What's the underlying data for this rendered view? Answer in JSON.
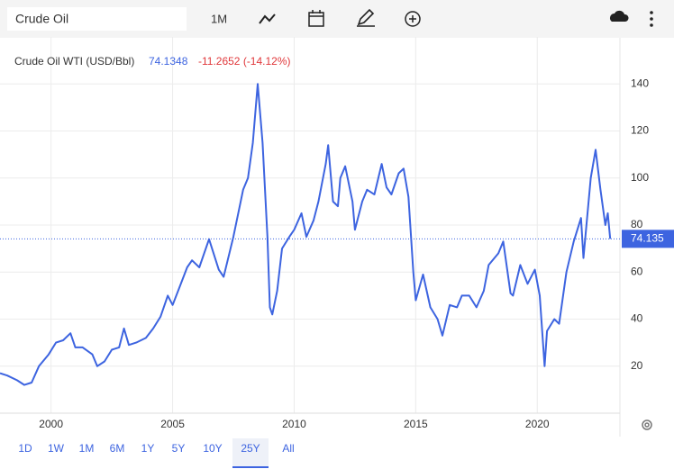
{
  "toolbar": {
    "search": "Crude Oil",
    "interval": "1M"
  },
  "chart_data": {
    "type": "line",
    "title": "Crude Oil WTI (USD/Bbl)",
    "legend_price": "74.1348",
    "legend_change": "-11.2652 (-14.12%)",
    "series": [
      {
        "name": "Crude Oil WTI",
        "color": "#3d64e0",
        "x": [
          1997.9,
          1998.2,
          1998.6,
          1998.9,
          1999.2,
          1999.5,
          1999.9,
          2000.2,
          2000.5,
          2000.8,
          2001.0,
          2001.3,
          2001.7,
          2001.9,
          2002.2,
          2002.5,
          2002.8,
          2003.0,
          2003.2,
          2003.5,
          2003.9,
          2004.2,
          2004.5,
          2004.8,
          2005.0,
          2005.3,
          2005.6,
          2005.8,
          2006.1,
          2006.5,
          2006.9,
          2007.1,
          2007.5,
          2007.8,
          2007.9,
          2008.1,
          2008.3,
          2008.5,
          2008.7,
          2008.9,
          2009.0,
          2009.1,
          2009.3,
          2009.5,
          2009.8,
          2010.0,
          2010.3,
          2010.5,
          2010.8,
          2011.0,
          2011.3,
          2011.4,
          2011.6,
          2011.8,
          2011.9,
          2012.1,
          2012.4,
          2012.5,
          2012.8,
          2013.0,
          2013.3,
          2013.6,
          2013.8,
          2014.0,
          2014.3,
          2014.5,
          2014.7,
          2014.9,
          2015.0,
          2015.3,
          2015.6,
          2015.9,
          2016.1,
          2016.4,
          2016.7,
          2016.9,
          2017.2,
          2017.5,
          2017.8,
          2018.0,
          2018.4,
          2018.6,
          2018.9,
          2019.0,
          2019.3,
          2019.6,
          2019.9,
          2020.1,
          2020.3,
          2020.4,
          2020.7,
          2020.9,
          2021.2,
          2021.5,
          2021.8,
          2021.9,
          2022.2,
          2022.4,
          2022.6,
          2022.8,
          2022.9,
          2023.0
        ],
        "values": [
          17,
          16,
          14,
          12,
          13,
          20,
          25,
          30,
          31,
          34,
          28,
          28,
          25,
          20,
          22,
          27,
          28,
          36,
          29,
          30,
          32,
          36,
          41,
          50,
          46,
          54,
          62,
          65,
          62,
          74,
          61,
          58,
          75,
          90,
          95,
          100,
          115,
          140,
          115,
          75,
          45,
          42,
          52,
          70,
          75,
          78,
          85,
          75,
          82,
          90,
          106,
          114,
          90,
          88,
          100,
          105,
          90,
          78,
          90,
          95,
          93,
          106,
          96,
          93,
          102,
          104,
          92,
          60,
          48,
          59,
          45,
          40,
          33,
          46,
          45,
          50,
          50,
          45,
          52,
          63,
          68,
          73,
          51,
          50,
          63,
          55,
          61,
          50,
          20,
          35,
          40,
          38,
          60,
          73,
          83,
          66,
          100,
          112,
          95,
          80,
          85,
          74.1
        ]
      }
    ],
    "last_value": 74.135,
    "xlim": [
      1997.9,
      2023.4
    ],
    "xticks": [
      2000,
      2005,
      2010,
      2015,
      2020
    ],
    "ylim": [
      0,
      160
    ],
    "yticks": [
      20,
      40,
      60,
      80,
      100,
      120,
      140
    ],
    "grid": true
  },
  "ranges": [
    "1D",
    "1W",
    "1M",
    "6M",
    "1Y",
    "5Y",
    "10Y",
    "25Y",
    "All"
  ],
  "active_range": "25Y"
}
